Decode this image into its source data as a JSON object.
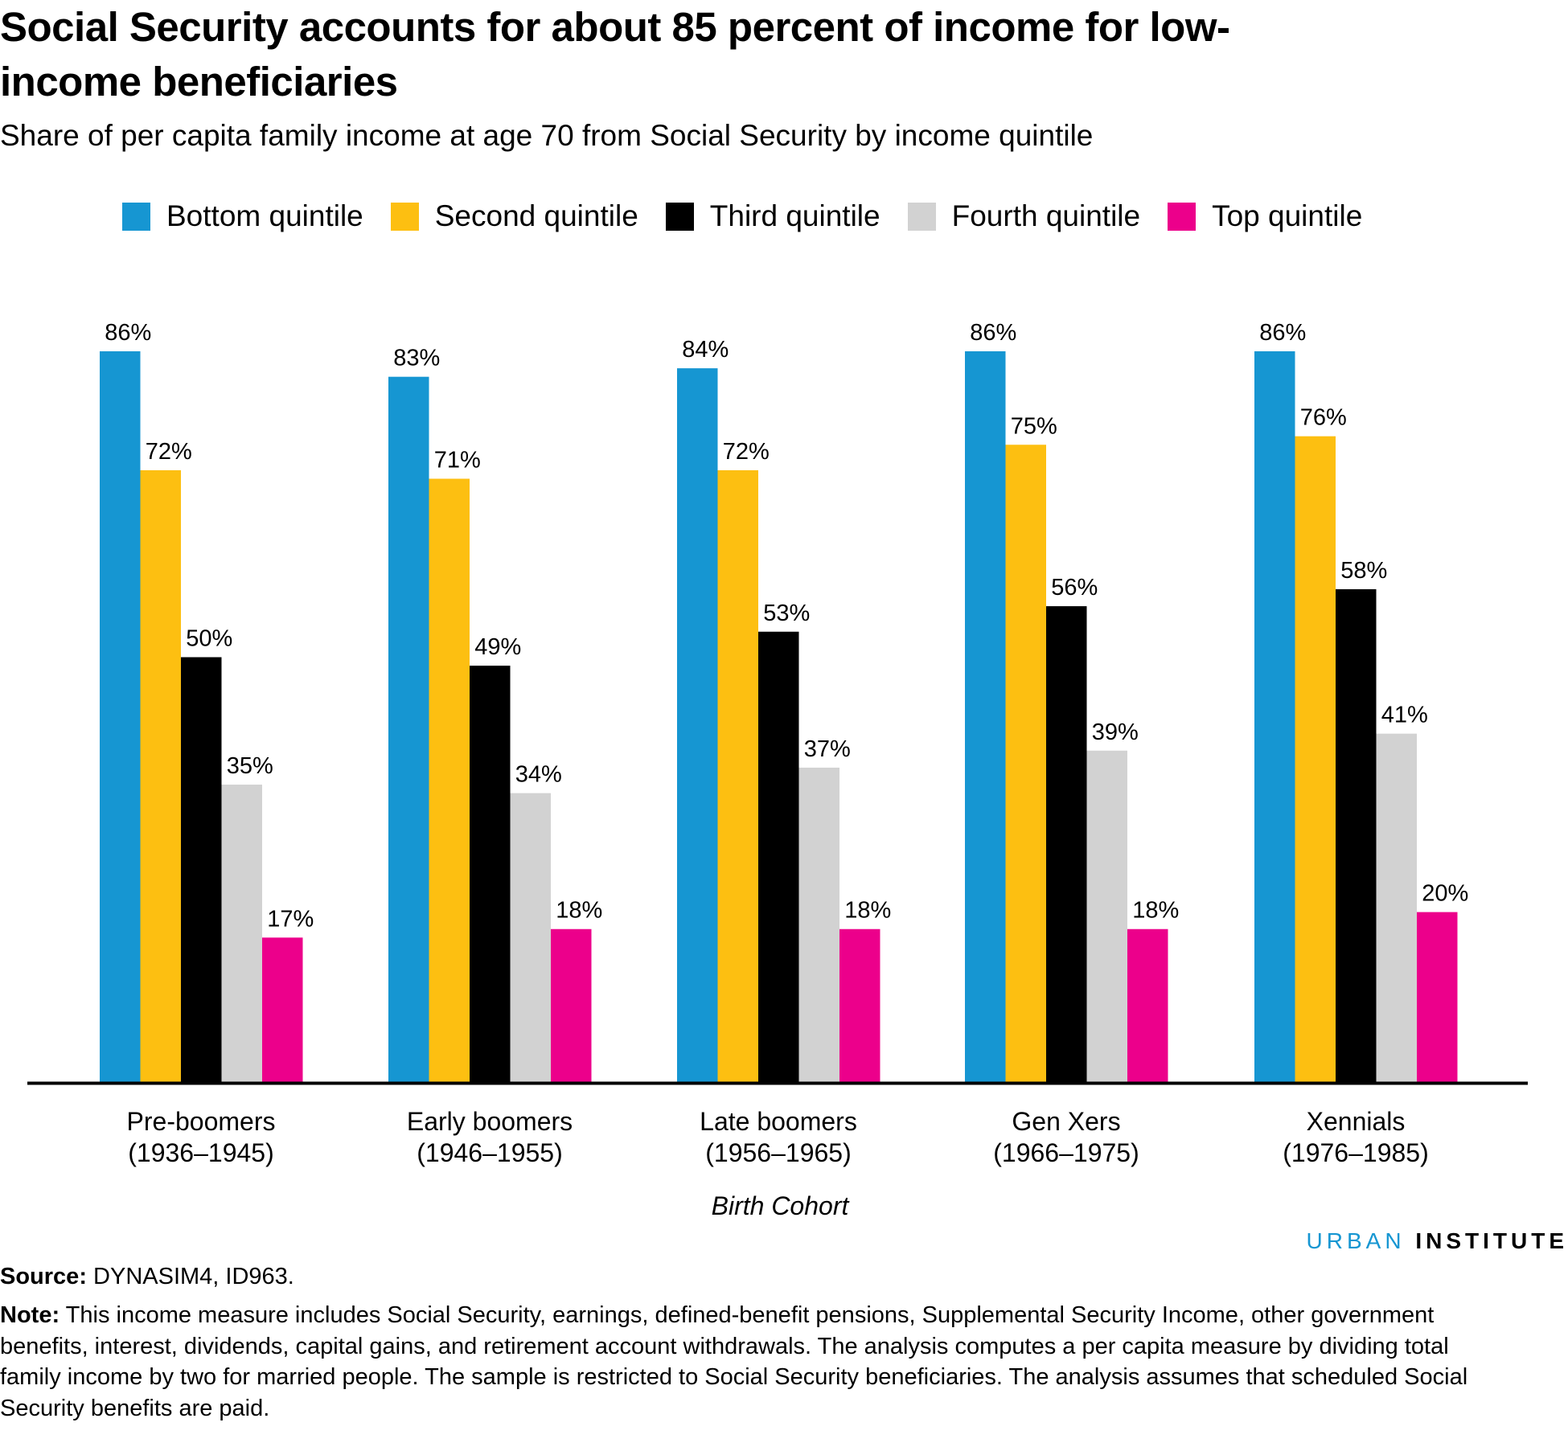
{
  "title": "Social Security accounts for about 85 percent of income for low-income beneficiaries",
  "subtitle": "Share of per capita family income at age 70 from Social Security by income quintile",
  "source_label": "Source:",
  "source_text": "DYNASIM4, ID963.",
  "note_label": "Note:",
  "note_text": "This income measure includes Social Security, earnings, defined-benefit pensions, Supplemental Security Income, other government benefits, interest, dividends, capital gains, and retirement account withdrawals. The analysis computes a per capita measure by dividing total family income by two for married people. The sample is restricted to Social Security beneficiaries. The analysis assumes that scheduled Social Security benefits are paid.",
  "logo": {
    "part1": "URBAN",
    "part2": "INSTITUTE"
  },
  "chart_data": {
    "type": "bar",
    "xlabel": "Birth Cohort",
    "ylabel": "",
    "ylim": [
      0,
      100
    ],
    "grid": false,
    "legend_position": "top",
    "categories": [
      {
        "line1": "Pre-boomers",
        "line2": "(1936–1945)"
      },
      {
        "line1": "Early boomers",
        "line2": "(1946–1955)"
      },
      {
        "line1": "Late boomers",
        "line2": "(1956–1965)"
      },
      {
        "line1": "Gen Xers",
        "line2": "(1966–1975)"
      },
      {
        "line1": "Xennials",
        "line2": "(1976–1985)"
      }
    ],
    "series": [
      {
        "name": "Bottom quintile",
        "color": "#1696d2",
        "values": [
          86,
          83,
          84,
          86,
          86
        ]
      },
      {
        "name": "Second quintile",
        "color": "#fdbf11",
        "values": [
          72,
          71,
          72,
          75,
          76
        ]
      },
      {
        "name": "Third quintile",
        "color": "#000000",
        "values": [
          50,
          49,
          53,
          56,
          58
        ]
      },
      {
        "name": "Fourth quintile",
        "color": "#d2d2d2",
        "values": [
          35,
          34,
          37,
          39,
          41
        ]
      },
      {
        "name": "Top quintile",
        "color": "#ec008b",
        "values": [
          17,
          18,
          18,
          18,
          20
        ]
      }
    ],
    "label_format": "percent"
  }
}
